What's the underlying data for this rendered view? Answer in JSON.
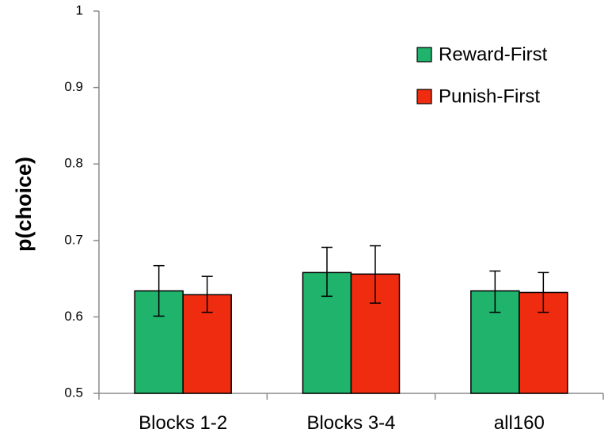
{
  "chart_data": {
    "type": "bar",
    "title": "",
    "xlabel": "",
    "ylabel": "p(choice)",
    "ylim": [
      0.5,
      1.0
    ],
    "yticks": [
      "0.5",
      "0.6",
      "0.7",
      "0.8",
      "0.9",
      "1"
    ],
    "categories": [
      "Blocks 1-2",
      "Blocks 3-4",
      "all160"
    ],
    "series": [
      {
        "name": "Reward-First",
        "color": "#1fb36b",
        "values": [
          0.634,
          0.658,
          0.634
        ],
        "error_low": [
          0.601,
          0.627,
          0.606
        ],
        "error_high": [
          0.667,
          0.691,
          0.66
        ]
      },
      {
        "name": "Punish-First",
        "color": "#f02c10",
        "values": [
          0.629,
          0.656,
          0.632
        ],
        "error_low": [
          0.606,
          0.618,
          0.606
        ],
        "error_high": [
          0.653,
          0.693,
          0.658
        ]
      }
    ],
    "legend_position": "top-right",
    "grid": false
  }
}
